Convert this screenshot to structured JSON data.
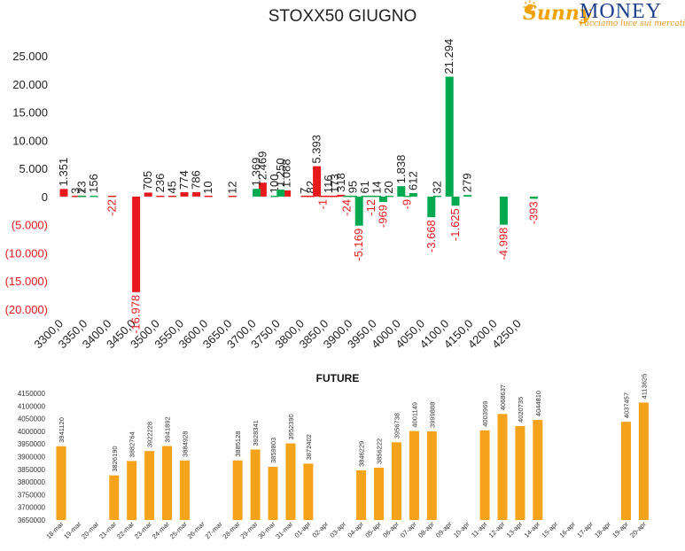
{
  "brand": {
    "name_part1": "Sunny",
    "name_part2": "MONEY",
    "tagline": "Facciamo luce sui mercati"
  },
  "chart_data": [
    {
      "type": "bar",
      "title": "STOXX50 GIUGNO",
      "x_tick_labels": [
        "3300,0",
        "3350,0",
        "3400,0",
        "3450,0",
        "3500,0",
        "3550,0",
        "3600,0",
        "3650,0",
        "3700,0",
        "3750,0",
        "3800,0",
        "3850,0",
        "3900,0",
        "3950,0",
        "4000,0",
        "4050,0",
        "4100,0",
        "4150,0",
        "4200,0",
        "4250,0"
      ],
      "y_tick_labels": [
        "25.000",
        "20.000",
        "15.000",
        "10.000",
        "5.000",
        "0",
        "(5.000)",
        "(10.000)",
        "(15.000)",
        "(20.000)"
      ],
      "ylim": [
        -20000,
        25000
      ],
      "grid": false,
      "legend": "none",
      "colors": {
        "puts": "#e8191c",
        "calls": "#00a94f",
        "positive_text": "#222222",
        "negative_text": "#e8191c"
      },
      "series": [
        {
          "values": [
            {
              "x": 3300,
              "value": 1351,
              "label": "1.351"
            },
            {
              "x": 3325,
              "value": 3,
              "label": "3"
            },
            {
              "x": 3337.5,
              "value": 23,
              "label": "23"
            },
            {
              "x": 3400,
              "value": -22,
              "label": "-22"
            },
            {
              "x": 3450,
              "value": -16978,
              "label": "-16.978"
            },
            {
              "x": 3475,
              "value": 705,
              "label": "705"
            },
            {
              "x": 3500,
              "value": 236,
              "label": "236"
            },
            {
              "x": 3525,
              "value": 45,
              "label": "45"
            },
            {
              "x": 3550,
              "value": 774,
              "label": "774"
            },
            {
              "x": 3575,
              "value": 786,
              "label": "786"
            },
            {
              "x": 3600,
              "value": 10,
              "label": "10"
            },
            {
              "x": 3650,
              "value": 12,
              "label": "12"
            },
            {
              "x": 3712.5,
              "value": 2469,
              "label": "2.469"
            },
            {
              "x": 3762.5,
              "value": 1088,
              "label": "1.088"
            },
            {
              "x": 3800,
              "value": 7,
              "label": "7"
            },
            {
              "x": 3812.5,
              "value": 82,
              "label": "82"
            },
            {
              "x": 3825,
              "value": 5393,
              "label": "5.393"
            },
            {
              "x": 3837.5,
              "value": -1,
              "label": "-1"
            },
            {
              "x": 3850,
              "value": 116,
              "label": "116"
            },
            {
              "x": 3862.5,
              "value": 173,
              "label": "173"
            },
            {
              "x": 3875,
              "value": 318,
              "label": "318"
            }
          ]
        },
        {
          "values": [
            {
              "x": 3337.5,
              "value": 1,
              "label": "1"
            },
            {
              "x": 3362.5,
              "value": 156,
              "label": "156"
            },
            {
              "x": 3700,
              "value": 1369,
              "label": "1.369"
            },
            {
              "x": 3737.5,
              "value": 100,
              "label": "100"
            },
            {
              "x": 3750,
              "value": 1250,
              "label": "1.250"
            },
            {
              "x": 3887.5,
              "value": -24,
              "label": "-24"
            },
            {
              "x": 3900,
              "value": 95,
              "label": "95"
            },
            {
              "x": 3912.5,
              "value": -5169,
              "label": "-5.169"
            },
            {
              "x": 3925,
              "value": 61,
              "label": "61"
            },
            {
              "x": 3937.5,
              "value": -12,
              "label": "-12"
            },
            {
              "x": 3950,
              "value": 14,
              "label": "14"
            },
            {
              "x": 3962.5,
              "value": -969,
              "label": "-969"
            },
            {
              "x": 3975,
              "value": 20,
              "label": "20"
            },
            {
              "x": 4000,
              "value": 1838,
              "label": "1.838"
            },
            {
              "x": 4012.5,
              "value": -9,
              "label": "-9"
            },
            {
              "x": 4025,
              "value": 612,
              "label": "612"
            },
            {
              "x": 4062.5,
              "value": -3668,
              "label": "-3.668"
            },
            {
              "x": 4075,
              "value": 32,
              "label": "32"
            },
            {
              "x": 4100,
              "value": 21294,
              "label": "21.294"
            },
            {
              "x": 4112.5,
              "value": -1625,
              "label": "-1.625"
            },
            {
              "x": 4137.5,
              "value": 279,
              "label": "279"
            },
            {
              "x": 4212.5,
              "value": -4998,
              "label": "-4.998"
            },
            {
              "x": 4275,
              "value": -393,
              "label": "-393"
            }
          ]
        }
      ]
    },
    {
      "type": "bar",
      "title": "FUTURE",
      "ylim": [
        3650000,
        4150000
      ],
      "y_tick_labels": [
        "4150000",
        "4100000",
        "4050000",
        "4000000",
        "3950000",
        "3900000",
        "3850000",
        "3800000",
        "3750000",
        "3700000",
        "3650000"
      ],
      "grid": false,
      "legend": "none",
      "color": "#f5a31a",
      "categories": [
        "18-mar",
        "19-mar",
        "20-mar",
        "21-mar",
        "22-mar",
        "23-mar",
        "24-mar",
        "25-mar",
        "26-mar",
        "27-mar",
        "28-mar",
        "29-mar",
        "30-mar",
        "31-mar",
        "01-apr",
        "02-apr",
        "03-apr",
        "04-apr",
        "05-apr",
        "06-apr",
        "07-apr",
        "08-apr",
        "09-apr",
        "10-apr",
        "11-apr",
        "12-apr",
        "13-apr",
        "14-apr",
        "15-apr",
        "16-apr",
        "17-apr",
        "18-apr",
        "19-apr",
        "20-apr"
      ],
      "values": [
        3941120,
        null,
        null,
        3826190,
        3882764,
        3922228,
        3941892,
        3884928,
        null,
        null,
        3885128,
        3928341,
        3859803,
        3952390,
        3872402,
        null,
        null,
        3846229,
        3856222,
        3956738,
        4001149,
        3999888,
        null,
        null,
        4003969,
        4068637,
        4020735,
        4044810,
        null,
        null,
        null,
        null,
        4037457,
        4113625
      ]
    }
  ]
}
